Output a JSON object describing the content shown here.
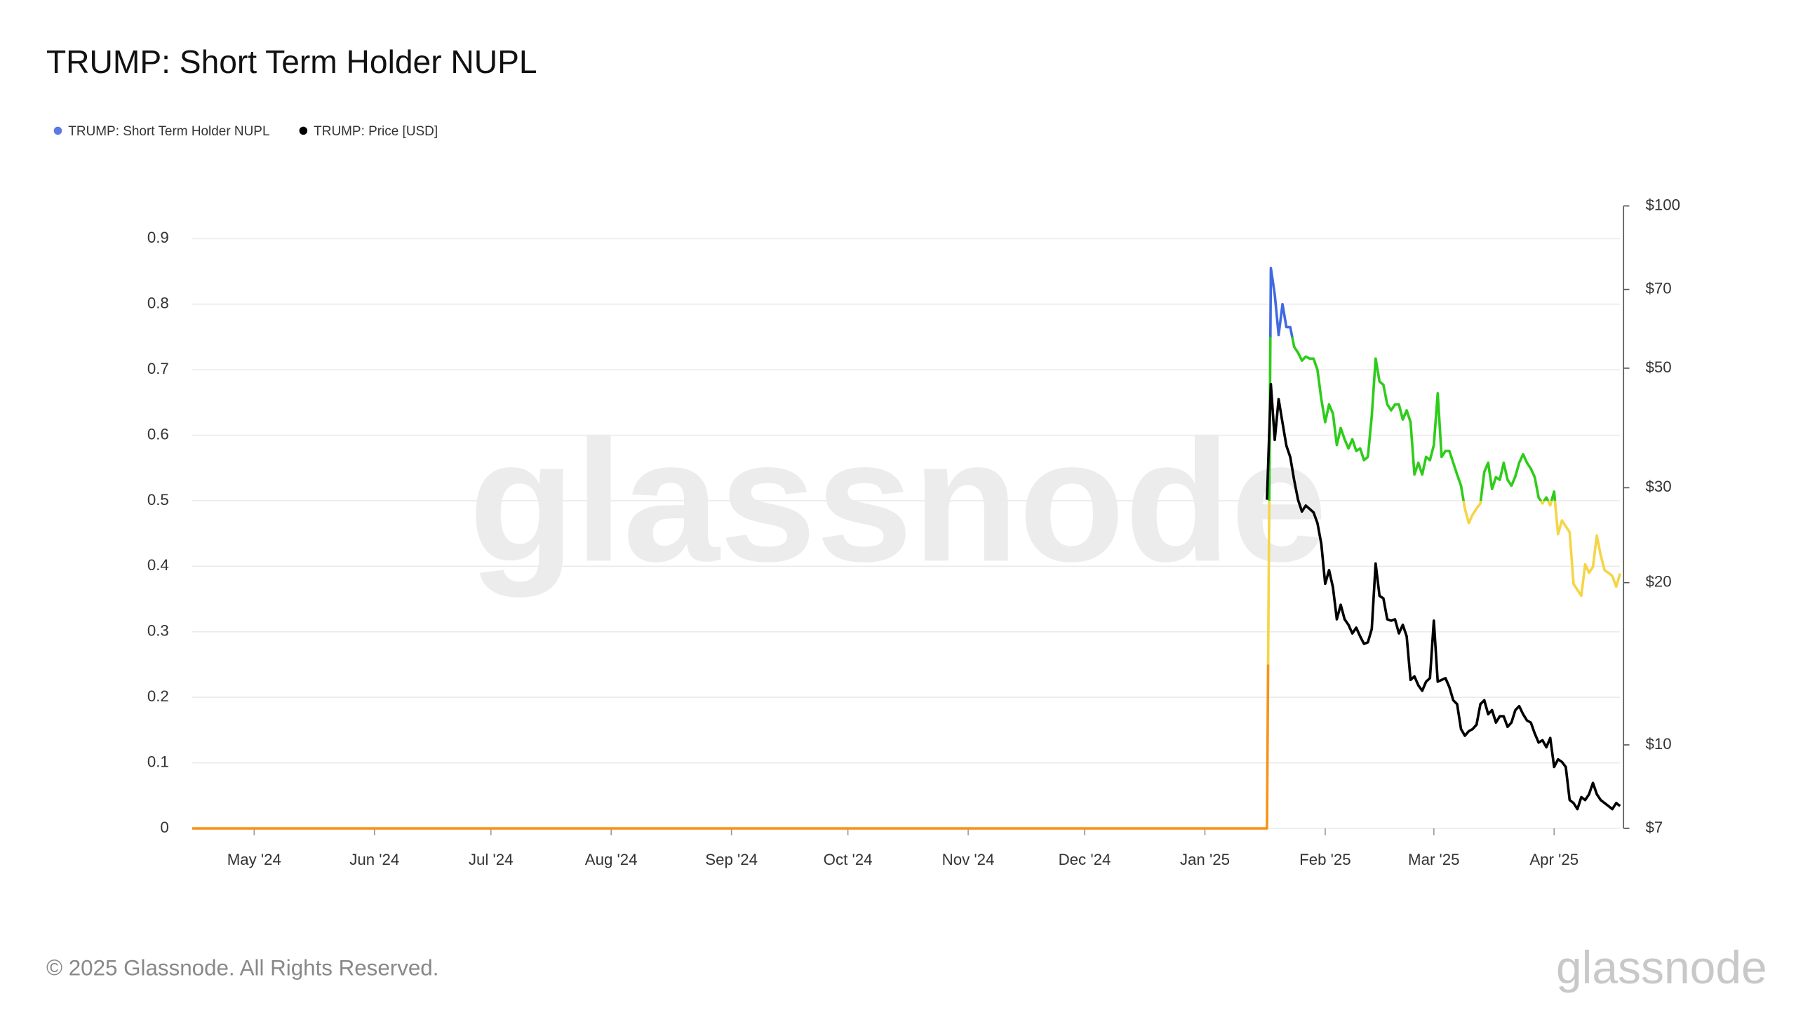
{
  "chart_data": {
    "type": "line",
    "title": "TRUMP: Short Term Holder NUPL",
    "footer": "© 2025 Glassnode. All Rights Reserved.",
    "watermark": "glassnode",
    "grid": true,
    "legend": "top-left",
    "x": [
      "2024-04-15",
      "2025-01-17",
      "2025-01-18",
      "2025-01-19",
      "2025-01-20",
      "2025-01-21",
      "2025-01-22",
      "2025-01-23",
      "2025-01-24",
      "2025-01-25",
      "2025-01-26",
      "2025-01-27",
      "2025-01-28",
      "2025-01-29",
      "2025-01-30",
      "2025-01-31",
      "2025-02-01",
      "2025-02-02",
      "2025-02-03",
      "2025-02-04",
      "2025-02-05",
      "2025-02-06",
      "2025-02-07",
      "2025-02-08",
      "2025-02-09",
      "2025-02-10",
      "2025-02-11",
      "2025-02-12",
      "2025-02-13",
      "2025-02-14",
      "2025-02-15",
      "2025-02-16",
      "2025-02-17",
      "2025-02-18",
      "2025-02-19",
      "2025-02-20",
      "2025-02-21",
      "2025-02-22",
      "2025-02-23",
      "2025-02-24",
      "2025-02-25",
      "2025-02-26",
      "2025-02-27",
      "2025-02-28",
      "2025-03-01",
      "2025-03-02",
      "2025-03-03",
      "2025-03-04",
      "2025-03-05",
      "2025-03-06",
      "2025-03-07",
      "2025-03-08",
      "2025-03-09",
      "2025-03-10",
      "2025-03-11",
      "2025-03-12",
      "2025-03-13",
      "2025-03-14",
      "2025-03-15",
      "2025-03-16",
      "2025-03-17",
      "2025-03-18",
      "2025-03-19",
      "2025-03-20",
      "2025-03-21",
      "2025-03-22",
      "2025-03-23",
      "2025-03-24",
      "2025-03-25",
      "2025-03-26",
      "2025-03-27",
      "2025-03-28",
      "2025-03-29",
      "2025-03-30",
      "2025-03-31",
      "2025-04-01",
      "2025-04-02",
      "2025-04-03",
      "2025-04-04",
      "2025-04-05",
      "2025-04-06",
      "2025-04-07",
      "2025-04-08",
      "2025-04-09",
      "2025-04-10",
      "2025-04-11",
      "2025-04-12",
      "2025-04-13",
      "2025-04-14",
      "2025-04-15",
      "2025-04-16",
      "2025-04-17",
      "2025-04-18"
    ],
    "series": [
      {
        "name": "TRUMP: Short Term Holder NUPL",
        "color": "#5b7be0",
        "axis": "y",
        "zone_thresholds": [
          0.25,
          0.5,
          0.75
        ],
        "zone_colors": [
          "#f7931a",
          "#f5d547",
          "#2ecc1a",
          "#4169e1"
        ],
        "values": [
          0,
          0,
          0.855,
          0.815,
          0.753,
          0.8,
          0.765,
          0.765,
          0.735,
          0.726,
          0.714,
          0.72,
          0.717,
          0.717,
          0.7,
          0.655,
          0.62,
          0.647,
          0.633,
          0.585,
          0.611,
          0.594,
          0.58,
          0.594,
          0.576,
          0.58,
          0.562,
          0.567,
          0.629,
          0.717,
          0.682,
          0.677,
          0.647,
          0.638,
          0.647,
          0.647,
          0.624,
          0.638,
          0.62,
          0.54,
          0.558,
          0.54,
          0.567,
          0.562,
          0.585,
          0.664,
          0.567,
          0.576,
          0.576,
          0.558,
          0.54,
          0.523,
          0.488,
          0.466,
          0.479,
          0.488,
          0.496,
          0.544,
          0.558,
          0.518,
          0.536,
          0.532,
          0.558,
          0.532,
          0.523,
          0.537,
          0.558,
          0.571,
          0.558,
          0.549,
          0.536,
          0.505,
          0.496,
          0.505,
          0.493,
          0.514,
          0.449,
          0.47,
          0.461,
          0.452,
          0.373,
          0.364,
          0.355,
          0.403,
          0.39,
          0.399,
          0.447,
          0.417,
          0.394,
          0.39,
          0.385,
          0.369,
          0.389
        ]
      },
      {
        "name": "TRUMP: Price [USD]",
        "color": "#000000",
        "axis": "y2",
        "values": [
          null,
          28.5,
          46.7,
          36.8,
          43.8,
          39.6,
          35.9,
          34.2,
          31.0,
          28.5,
          27.1,
          27.8,
          27.4,
          27.0,
          25.8,
          23.6,
          19.9,
          21.1,
          19.6,
          17.1,
          18.2,
          17.1,
          16.7,
          16.1,
          16.5,
          15.9,
          15.4,
          15.5,
          16.4,
          21.7,
          18.9,
          18.7,
          17.1,
          17.0,
          17.1,
          16.1,
          16.7,
          15.9,
          13.2,
          13.4,
          12.9,
          12.6,
          13.1,
          13.3,
          17.0,
          13.1,
          13.2,
          13.3,
          12.8,
          12.1,
          11.9,
          10.7,
          10.4,
          10.6,
          10.7,
          10.9,
          11.9,
          12.1,
          11.4,
          11.6,
          11.0,
          11.3,
          11.3,
          10.8,
          11.0,
          11.6,
          11.8,
          11.4,
          11.1,
          11.0,
          10.5,
          10.1,
          10.2,
          9.9,
          10.3,
          9.1,
          9.4,
          9.3,
          9.1,
          7.9,
          7.8,
          7.6,
          8.0,
          7.9,
          8.1,
          8.5,
          8.1,
          7.9,
          7.8,
          7.7,
          7.6,
          7.8,
          7.7
        ]
      }
    ],
    "xlim": [
      "2024-04-15",
      "2025-04-18"
    ],
    "xticks": [
      {
        "value": "2024-05-01",
        "label": "May '24"
      },
      {
        "value": "2024-06-01",
        "label": "Jun '24"
      },
      {
        "value": "2024-07-01",
        "label": "Jul '24"
      },
      {
        "value": "2024-08-01",
        "label": "Aug '24"
      },
      {
        "value": "2024-09-01",
        "label": "Sep '24"
      },
      {
        "value": "2024-10-01",
        "label": "Oct '24"
      },
      {
        "value": "2024-11-01",
        "label": "Nov '24"
      },
      {
        "value": "2024-12-01",
        "label": "Dec '24"
      },
      {
        "value": "2025-01-01",
        "label": "Jan '25"
      },
      {
        "value": "2025-02-01",
        "label": "Feb '25"
      },
      {
        "value": "2025-03-01",
        "label": "Mar '25"
      },
      {
        "value": "2025-04-01",
        "label": "Apr '25"
      }
    ],
    "ylim": [
      0,
      0.95
    ],
    "yticks": [
      0,
      0.1,
      0.2,
      0.3,
      0.4,
      0.5,
      0.6,
      0.7,
      0.8,
      0.9
    ],
    "y2lim": [
      7,
      100
    ],
    "y2log": true,
    "y2ticks": [
      {
        "value": 7,
        "label": "$7"
      },
      {
        "value": 10,
        "label": "$10"
      },
      {
        "value": 20,
        "label": "$20"
      },
      {
        "value": 30,
        "label": "$30"
      },
      {
        "value": 50,
        "label": "$50"
      },
      {
        "value": 70,
        "label": "$70"
      },
      {
        "value": 100,
        "label": "$100"
      }
    ]
  }
}
